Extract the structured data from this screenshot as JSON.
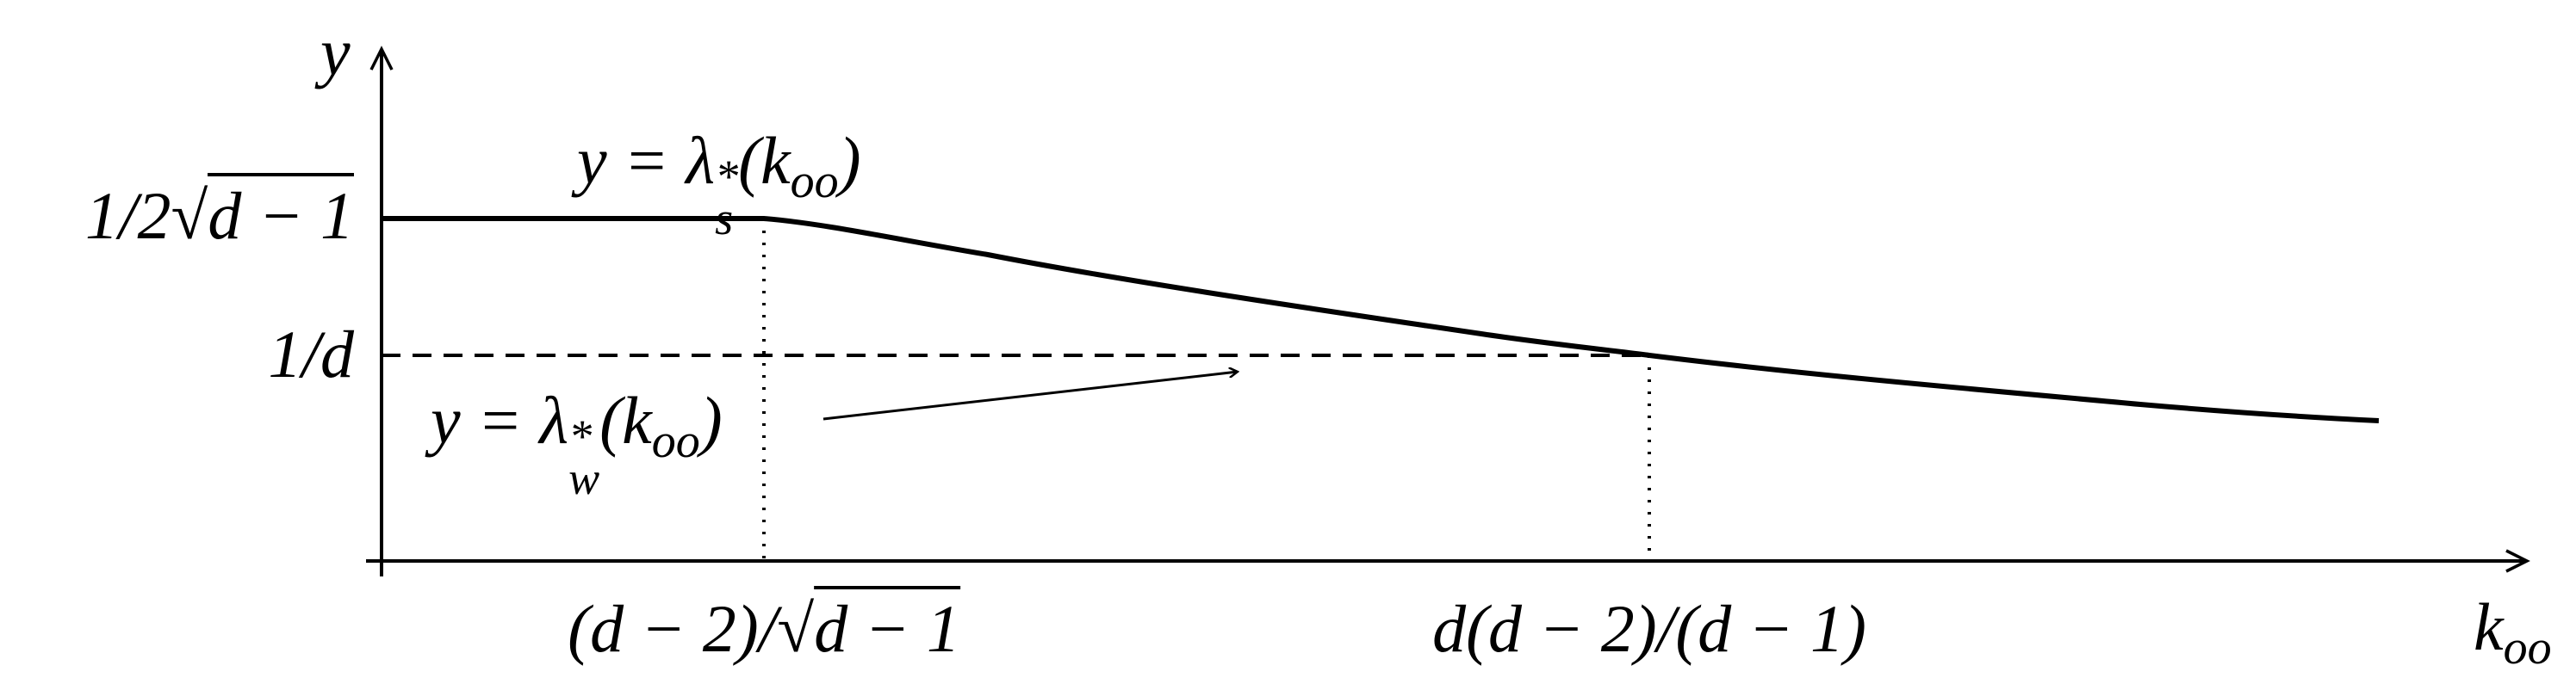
{
  "axes": {
    "y_label": "y",
    "x_label": {
      "base": "k",
      "sub": "oo"
    }
  },
  "y_ticks": [
    {
      "prefix": "1/2",
      "radicand": "d − 1"
    },
    {
      "label": "1/d"
    }
  ],
  "x_ticks": [
    {
      "prefix": "(d − 2)/",
      "radicand": "d − 1"
    },
    {
      "label": "d(d − 2)/(d − 1)"
    }
  ],
  "curves": [
    {
      "lhs": "y = ",
      "symbol": "λ",
      "sup": "*",
      "sub": "s",
      "arg_open": "(k",
      "arg_sub": "oo",
      "arg_close": ")"
    },
    {
      "lhs": "y = ",
      "symbol": "λ",
      "sup": "*",
      "sub": "w",
      "arg_open": "(k",
      "arg_sub": "oo",
      "arg_close": ")"
    }
  ]
}
